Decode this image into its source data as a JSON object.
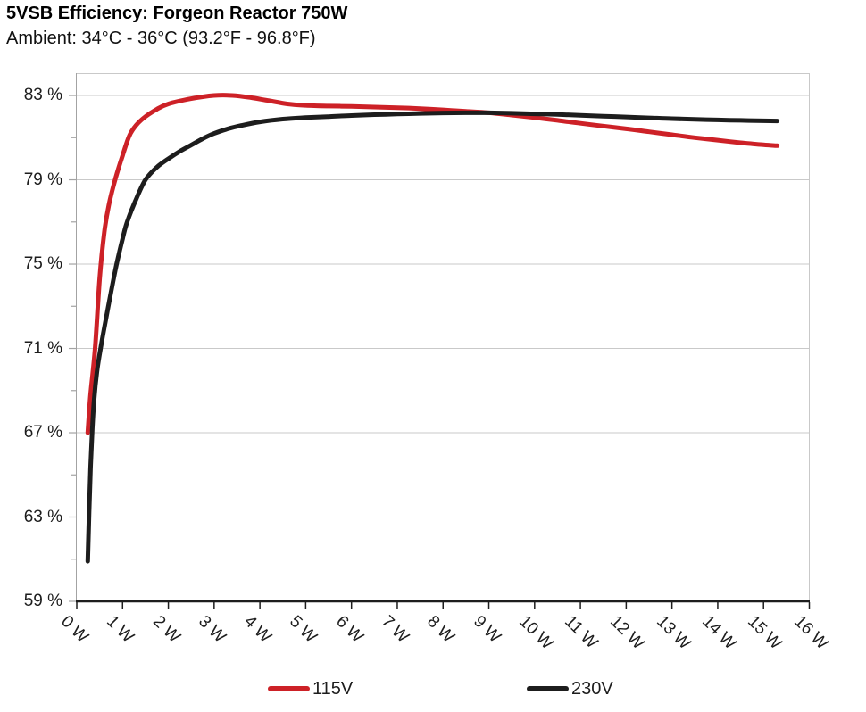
{
  "header": {
    "title": "5VSB Efficiency: Forgeon Reactor 750W",
    "subtitle": "Ambient: 34°C - 36°C (93.2°F - 96.8°F)"
  },
  "chart_data": {
    "type": "line",
    "title": "5VSB Efficiency: Forgeon Reactor 750W",
    "subtitle": "Ambient: 34°C - 36°C (93.2°F - 96.8°F)",
    "xlabel": "",
    "ylabel": "",
    "xlim": [
      0,
      16
    ],
    "ylim": [
      59,
      84
    ],
    "grid": "horizontal-major",
    "x_axis": {
      "range": [
        0,
        16
      ],
      "ticks": [
        0,
        1,
        2,
        3,
        4,
        5,
        6,
        7,
        8,
        9,
        10,
        11,
        12,
        13,
        14,
        15,
        16
      ],
      "labels": [
        "0 W",
        "1 W",
        "2 W",
        "3 W",
        "4 W",
        "5 W",
        "6 W",
        "7 W",
        "8 W",
        "9 W",
        "10 W",
        "11 W",
        "12 W",
        "13 W",
        "14 W",
        "15 W",
        "16 W"
      ]
    },
    "y_axis": {
      "range": [
        59,
        84
      ],
      "ticks": [
        83,
        79,
        75,
        71,
        67,
        63,
        59
      ],
      "labels": [
        "83 %",
        "79 %",
        "75 %",
        "71 %",
        "67 %",
        "63 %",
        "59 %"
      ],
      "minor_ticks": [
        81,
        77,
        73,
        69,
        65,
        61
      ]
    },
    "legend": {
      "position": "bottom",
      "items": [
        "115V",
        "230V"
      ]
    },
    "colors": {
      "grid": "#c9c9c9",
      "plot_border": "#c9c9c9",
      "y_axis_line": "#a3a3a3",
      "x_axis_line": "#1d1d1d",
      "series_115v": "#cd2127",
      "series_230v": "#1d1d1d"
    },
    "series": [
      {
        "name": "115V",
        "color": "#cd2127",
        "points": [
          [
            0.24,
            67.0
          ],
          [
            0.3,
            68.8
          ],
          [
            0.4,
            71.0
          ],
          [
            0.5,
            74.3
          ],
          [
            0.6,
            76.5
          ],
          [
            0.7,
            77.8
          ],
          [
            0.85,
            79.1
          ],
          [
            1.0,
            80.15
          ],
          [
            1.15,
            81.1
          ],
          [
            1.3,
            81.6
          ],
          [
            1.5,
            82.0
          ],
          [
            1.75,
            82.35
          ],
          [
            2.0,
            82.6
          ],
          [
            2.5,
            82.85
          ],
          [
            3.0,
            83.0
          ],
          [
            3.4,
            83.0
          ],
          [
            3.8,
            82.9
          ],
          [
            4.2,
            82.75
          ],
          [
            4.6,
            82.6
          ],
          [
            5.0,
            82.53
          ],
          [
            5.5,
            82.5
          ],
          [
            6.0,
            82.48
          ],
          [
            6.5,
            82.45
          ],
          [
            7.0,
            82.42
          ],
          [
            7.5,
            82.38
          ],
          [
            8.0,
            82.32
          ],
          [
            8.5,
            82.25
          ],
          [
            9.0,
            82.18
          ],
          [
            9.5,
            82.07
          ],
          [
            10.0,
            81.95
          ],
          [
            10.5,
            81.82
          ],
          [
            11.0,
            81.68
          ],
          [
            11.5,
            81.55
          ],
          [
            12.0,
            81.42
          ],
          [
            12.5,
            81.28
          ],
          [
            13.0,
            81.14
          ],
          [
            13.5,
            81.0
          ],
          [
            14.0,
            80.88
          ],
          [
            14.5,
            80.76
          ],
          [
            15.0,
            80.66
          ],
          [
            15.3,
            80.62
          ]
        ]
      },
      {
        "name": "230V",
        "color": "#1d1d1d",
        "points": [
          [
            0.24,
            60.9
          ],
          [
            0.27,
            63.2
          ],
          [
            0.3,
            65.3
          ],
          [
            0.34,
            67.2
          ],
          [
            0.38,
            68.6
          ],
          [
            0.44,
            69.9
          ],
          [
            0.52,
            71.0
          ],
          [
            0.62,
            72.2
          ],
          [
            0.75,
            73.7
          ],
          [
            0.87,
            75.0
          ],
          [
            1.0,
            76.2
          ],
          [
            1.1,
            77.0
          ],
          [
            1.3,
            78.1
          ],
          [
            1.5,
            79.0
          ],
          [
            1.75,
            79.6
          ],
          [
            2.0,
            80.0
          ],
          [
            2.25,
            80.35
          ],
          [
            2.5,
            80.65
          ],
          [
            2.75,
            80.95
          ],
          [
            3.0,
            81.2
          ],
          [
            3.3,
            81.42
          ],
          [
            3.6,
            81.58
          ],
          [
            4.0,
            81.75
          ],
          [
            4.5,
            81.88
          ],
          [
            5.0,
            81.95
          ],
          [
            5.5,
            82.0
          ],
          [
            6.0,
            82.05
          ],
          [
            6.5,
            82.09
          ],
          [
            7.0,
            82.12
          ],
          [
            7.5,
            82.15
          ],
          [
            8.0,
            82.17
          ],
          [
            8.5,
            82.18
          ],
          [
            9.0,
            82.18
          ],
          [
            9.5,
            82.16
          ],
          [
            10.0,
            82.13
          ],
          [
            10.5,
            82.1
          ],
          [
            11.0,
            82.06
          ],
          [
            11.5,
            82.02
          ],
          [
            12.0,
            81.98
          ],
          [
            12.5,
            81.94
          ],
          [
            13.0,
            81.9
          ],
          [
            13.5,
            81.87
          ],
          [
            14.0,
            81.84
          ],
          [
            14.5,
            81.82
          ],
          [
            15.0,
            81.8
          ],
          [
            15.3,
            81.79
          ]
        ]
      }
    ]
  }
}
